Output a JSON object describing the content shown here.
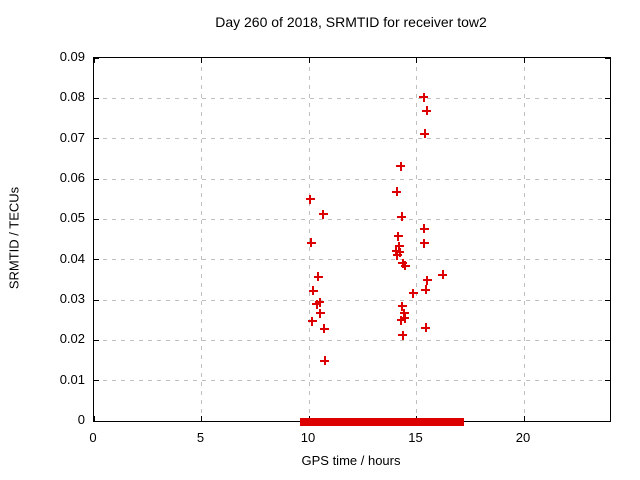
{
  "chart_data": {
    "type": "scatter",
    "title": "Day 260 of 2018, SRMTID for receiver tow2",
    "xlabel": "GPS time / hours",
    "ylabel": "SRMTID / TECUs",
    "xlim": [
      0,
      24
    ],
    "ylim": [
      0,
      0.09
    ],
    "grid": true,
    "legend": "none",
    "marker": {
      "shape": "plus",
      "color": "#dd0000"
    },
    "frame_color": "#000000",
    "grid_color": "#bfbfbf",
    "x_ticks": [
      {
        "value": 0,
        "label": "0"
      },
      {
        "value": 5,
        "label": "5"
      },
      {
        "value": 10,
        "label": "10"
      },
      {
        "value": 15,
        "label": "15"
      },
      {
        "value": 20,
        "label": "20"
      }
    ],
    "y_ticks": [
      {
        "value": 0.0,
        "label": "0"
      },
      {
        "value": 0.01,
        "label": "0.01"
      },
      {
        "value": 0.02,
        "label": "0.02"
      },
      {
        "value": 0.03,
        "label": "0.03"
      },
      {
        "value": 0.04,
        "label": "0.04"
      },
      {
        "value": 0.05,
        "label": "0.05"
      },
      {
        "value": 0.06,
        "label": "0.06"
      },
      {
        "value": 0.07,
        "label": "0.07"
      },
      {
        "value": 0.08,
        "label": "0.08"
      },
      {
        "value": 0.09,
        "label": "0.09"
      }
    ],
    "x_gridlines": [
      5,
      10,
      15,
      20
    ],
    "y_gridlines": [
      0.01,
      0.02,
      0.03,
      0.04,
      0.05,
      0.06,
      0.07,
      0.08
    ],
    "series": [
      {
        "name": "SRMTID",
        "points": [
          [
            10.06,
            0.055
          ],
          [
            10.66,
            0.0512
          ],
          [
            10.11,
            0.0442
          ],
          [
            10.42,
            0.0358
          ],
          [
            10.2,
            0.0323
          ],
          [
            10.37,
            0.0289
          ],
          [
            10.51,
            0.0295
          ],
          [
            10.53,
            0.0267
          ],
          [
            10.15,
            0.0247
          ],
          [
            10.71,
            0.0229
          ],
          [
            10.73,
            0.015
          ],
          [
            15.33,
            0.0803
          ],
          [
            15.47,
            0.0769
          ],
          [
            15.38,
            0.0712
          ],
          [
            14.27,
            0.0631
          ],
          [
            14.09,
            0.0568
          ],
          [
            14.31,
            0.0507
          ],
          [
            15.36,
            0.0477
          ],
          [
            14.15,
            0.0458
          ],
          [
            15.36,
            0.0441
          ],
          [
            14.19,
            0.0433
          ],
          [
            14.06,
            0.0422
          ],
          [
            14.22,
            0.0418
          ],
          [
            14.11,
            0.0411
          ],
          [
            14.37,
            0.0391
          ],
          [
            14.47,
            0.0385
          ],
          [
            16.22,
            0.0362
          ],
          [
            15.49,
            0.0349
          ],
          [
            15.44,
            0.0325
          ],
          [
            14.85,
            0.0317
          ],
          [
            14.33,
            0.0285
          ],
          [
            14.42,
            0.0267
          ],
          [
            14.29,
            0.025
          ],
          [
            14.45,
            0.0255
          ],
          [
            15.44,
            0.0231
          ],
          [
            14.37,
            0.0212
          ]
        ]
      }
    ],
    "zero_line_segments": [
      [
        9.67,
        10.14
      ],
      [
        10.23,
        12.6
      ],
      [
        12.74,
        14.65
      ],
      [
        14.74,
        16.14
      ],
      [
        16.28,
        17.12
      ]
    ]
  }
}
